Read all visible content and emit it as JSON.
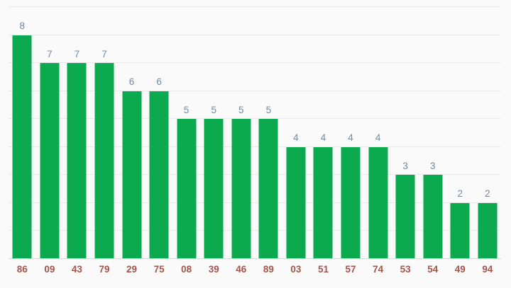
{
  "chart_data": {
    "type": "bar",
    "title": "",
    "xlabel": "",
    "ylabel": "",
    "categories": [
      "86",
      "09",
      "43",
      "79",
      "29",
      "75",
      "08",
      "39",
      "46",
      "89",
      "03",
      "51",
      "57",
      "74",
      "53",
      "54",
      "49",
      "94"
    ],
    "values": [
      8,
      7,
      7,
      7,
      6,
      6,
      5,
      5,
      5,
      5,
      4,
      4,
      4,
      4,
      3,
      3,
      2,
      2
    ],
    "value_labels_visible": true,
    "ylim": [
      0,
      9
    ],
    "gridline_step": 1,
    "grid": true,
    "y_tick_labels_visible": false,
    "legend": "none",
    "colors": {
      "bar": "#0caa4f",
      "value_label": "#7589a2",
      "category_label": "#a3554b",
      "gridline": "#e9e9e9",
      "baseline": "#d7d7d7",
      "background": "#fafafa"
    }
  }
}
